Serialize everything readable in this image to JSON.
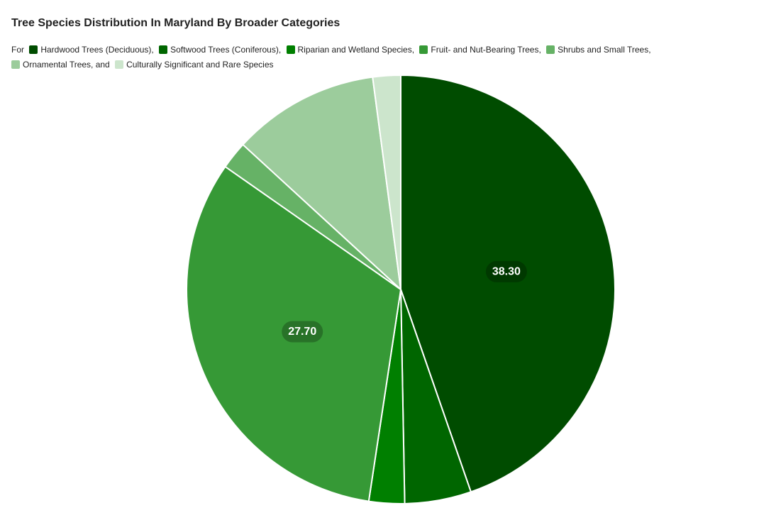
{
  "chart_data": {
    "type": "pie",
    "title": "Tree Species Distribution In Maryland By Broader Categories",
    "legend_prefix": "For",
    "legend_position": "top",
    "categories": [
      "Hardwood Trees (Deciduous),",
      "Softwood Trees (Coniferous),",
      "Riparian and Wetland Species,",
      "Fruit- and Nut-Bearing Trees,",
      "Shrubs and Small Trees,",
      "Ornamental Trees, and",
      "Culturally Significant and Rare Species"
    ],
    "values": [
      38.3,
      4.3,
      2.3,
      27.7,
      1.8,
      9.5,
      1.8
    ],
    "colors": [
      "#004c00",
      "#006600",
      "#007f00",
      "#369936",
      "#66b266",
      "#9ccc9c",
      "#cce5cc"
    ],
    "data_labels": [
      "38.30",
      "",
      "",
      "27.70",
      "",
      "",
      ""
    ],
    "start_angle": 0,
    "direction": "clockwise"
  }
}
